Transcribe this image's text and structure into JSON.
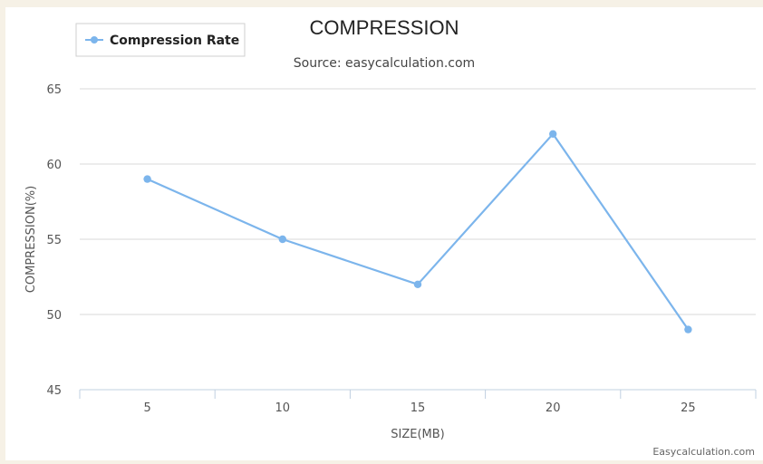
{
  "chart_data": {
    "type": "line",
    "title": "COMPRESSION",
    "subtitle": "Source: easycalculation.com",
    "xlabel": "SIZE(MB)",
    "ylabel": "COMPRESSION(%)",
    "categories": [
      "5",
      "10",
      "15",
      "20",
      "25"
    ],
    "series": [
      {
        "name": "Compression Rate",
        "values": [
          59,
          55,
          52,
          62,
          49
        ],
        "color": "#7cb5ec"
      }
    ],
    "ylim": [
      45,
      65
    ],
    "yticks": [
      45,
      50,
      55,
      60,
      65
    ],
    "grid": true,
    "legend": "top-left",
    "credit": "Easycalculation.com"
  }
}
